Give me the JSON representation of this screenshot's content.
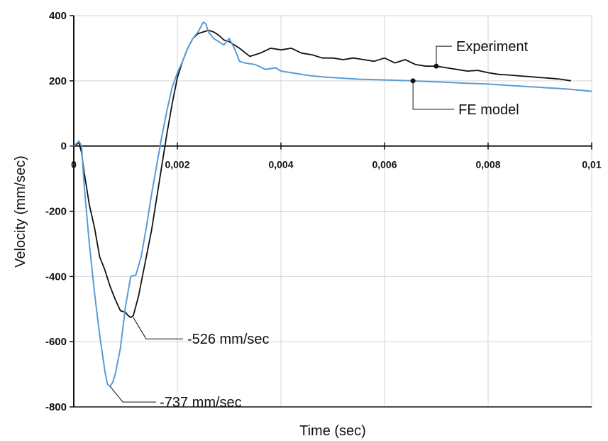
{
  "chart_data": {
    "type": "line",
    "title": "",
    "xlabel": "Time (sec)",
    "ylabel": "Velocity (mm/sec)",
    "xlim": [
      0,
      0.01
    ],
    "ylim": [
      -800,
      400
    ],
    "grid": true,
    "x_ticks": [
      0,
      0.002,
      0.004,
      0.006,
      0.008,
      0.01
    ],
    "x_tick_labels": [
      "0",
      "0,002",
      "0,004",
      "0,006",
      "0,008",
      "0,01"
    ],
    "y_ticks": [
      -800,
      -600,
      -400,
      -200,
      0,
      200,
      400
    ],
    "y_tick_labels": [
      "-800",
      "-600",
      "-400",
      "-200",
      "0",
      "200",
      "400"
    ],
    "colors": {
      "experiment": "#111111",
      "fe_model": "#5b9bd5"
    },
    "series": [
      {
        "key": "experiment",
        "x": [
          0,
          0.0001,
          0.00015,
          0.0002,
          0.0003,
          0.0004,
          0.0005,
          0.0006,
          0.0007,
          0.0008,
          0.0009,
          0.001,
          0.00105,
          0.0011,
          0.00115,
          0.0012,
          0.00125,
          0.0013,
          0.0014,
          0.0015,
          0.0016,
          0.0017,
          0.0018,
          0.0019,
          0.002,
          0.0021,
          0.0022,
          0.0023,
          0.0024,
          0.0025,
          0.0026,
          0.0027,
          0.0028,
          0.0029,
          0.003,
          0.0032,
          0.0034,
          0.0036,
          0.0038,
          0.004,
          0.0042,
          0.0044,
          0.0046,
          0.0048,
          0.005,
          0.0052,
          0.0054,
          0.0056,
          0.0058,
          0.006,
          0.0062,
          0.0064,
          0.0066,
          0.0068,
          0.007,
          0.0072,
          0.0074,
          0.0076,
          0.0078,
          0.008,
          0.0082,
          0.0084,
          0.0086,
          0.0088,
          0.009,
          0.0092,
          0.0094,
          0.0096
        ],
        "y": [
          0,
          10,
          -20,
          -80,
          -180,
          -250,
          -340,
          -380,
          -430,
          -470,
          -505,
          -510,
          -520,
          -526,
          -520,
          -490,
          -460,
          -420,
          -340,
          -260,
          -160,
          -60,
          40,
          130,
          210,
          260,
          300,
          330,
          345,
          350,
          355,
          350,
          340,
          325,
          320,
          300,
          275,
          285,
          300,
          295,
          300,
          285,
          280,
          270,
          270,
          265,
          270,
          265,
          260,
          270,
          255,
          265,
          250,
          245,
          245,
          240,
          235,
          230,
          232,
          225,
          220,
          218,
          215,
          213,
          210,
          208,
          205,
          200
        ]
      },
      {
        "key": "fe_model",
        "x": [
          0,
          0.0001,
          0.00015,
          0.0002,
          0.0003,
          0.0004,
          0.0005,
          0.0006,
          0.00065,
          0.0007,
          0.00075,
          0.0008,
          0.0009,
          0.001,
          0.0011,
          0.0012,
          0.0013,
          0.0014,
          0.0015,
          0.0016,
          0.0017,
          0.0018,
          0.0019,
          0.002,
          0.0021,
          0.0022,
          0.0023,
          0.0024,
          0.0025,
          0.00255,
          0.0026,
          0.00265,
          0.0027,
          0.0028,
          0.0029,
          0.003,
          0.0031,
          0.0032,
          0.0033,
          0.0035,
          0.0037,
          0.0039,
          0.004,
          0.0042,
          0.0044,
          0.0046,
          0.0048,
          0.005,
          0.0055,
          0.006,
          0.0065,
          0.007,
          0.0075,
          0.008,
          0.0085,
          0.009,
          0.0095,
          0.01
        ],
        "y": [
          0,
          15,
          0,
          -120,
          -300,
          -450,
          -580,
          -690,
          -730,
          -737,
          -725,
          -700,
          -620,
          -490,
          -400,
          -395,
          -340,
          -250,
          -150,
          -60,
          30,
          110,
          180,
          225,
          260,
          300,
          330,
          350,
          380,
          375,
          350,
          340,
          330,
          320,
          310,
          330,
          300,
          260,
          255,
          250,
          235,
          240,
          230,
          225,
          220,
          215,
          212,
          210,
          205,
          203,
          200,
          197,
          193,
          190,
          185,
          180,
          175,
          168
        ]
      }
    ],
    "annotations": [
      {
        "key": "legend_experiment",
        "text": "Experiment",
        "x": 0.007,
        "y": 245
      },
      {
        "key": "legend_fe",
        "text": "FE model",
        "x": 0.00655,
        "y": 200
      },
      {
        "key": "min_experiment",
        "text": "-526 mm/sec",
        "x": 0.00115,
        "y": -526
      },
      {
        "key": "min_fe",
        "text": "-737 mm/sec",
        "x": 0.0007,
        "y": -737
      }
    ]
  }
}
